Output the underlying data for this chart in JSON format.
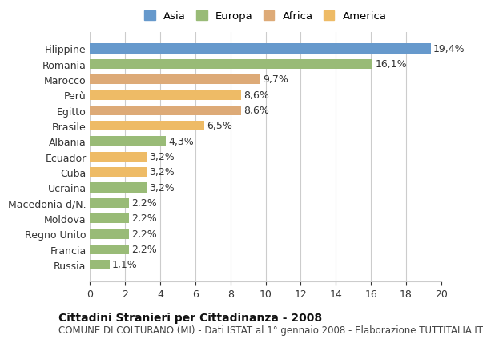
{
  "countries": [
    "Filippine",
    "Romania",
    "Marocco",
    "Perù",
    "Egitto",
    "Brasile",
    "Albania",
    "Ecuador",
    "Cuba",
    "Ucraina",
    "Macedonia d/N.",
    "Moldova",
    "Regno Unito",
    "Francia",
    "Russia"
  ],
  "values": [
    19.4,
    16.1,
    9.7,
    8.6,
    8.6,
    6.5,
    4.3,
    3.2,
    3.2,
    3.2,
    2.2,
    2.2,
    2.2,
    2.2,
    1.1
  ],
  "colors": [
    "#6699cc",
    "#99bb77",
    "#ddaa77",
    "#eebb66",
    "#ddaa77",
    "#eebb66",
    "#99bb77",
    "#eebb66",
    "#eebb66",
    "#99bb77",
    "#99bb77",
    "#99bb77",
    "#99bb77",
    "#99bb77",
    "#99bb77"
  ],
  "continents": [
    "Asia",
    "Europa",
    "Africa",
    "America"
  ],
  "legend_colors": [
    "#6699cc",
    "#99bb77",
    "#ddaa77",
    "#eebb66"
  ],
  "title": "Cittadini Stranieri per Cittadinanza - 2008",
  "subtitle": "COMUNE DI COLTURANO (MI) - Dati ISTAT al 1° gennaio 2008 - Elaborazione TUTTITALIA.IT",
  "xlim": [
    0,
    20
  ],
  "xticks": [
    0,
    2,
    4,
    6,
    8,
    10,
    12,
    14,
    16,
    18,
    20
  ],
  "bg_color": "#ffffff",
  "grid_color": "#cccccc",
  "bar_height": 0.65,
  "label_fontsize": 9,
  "title_fontsize": 10,
  "subtitle_fontsize": 8.5
}
